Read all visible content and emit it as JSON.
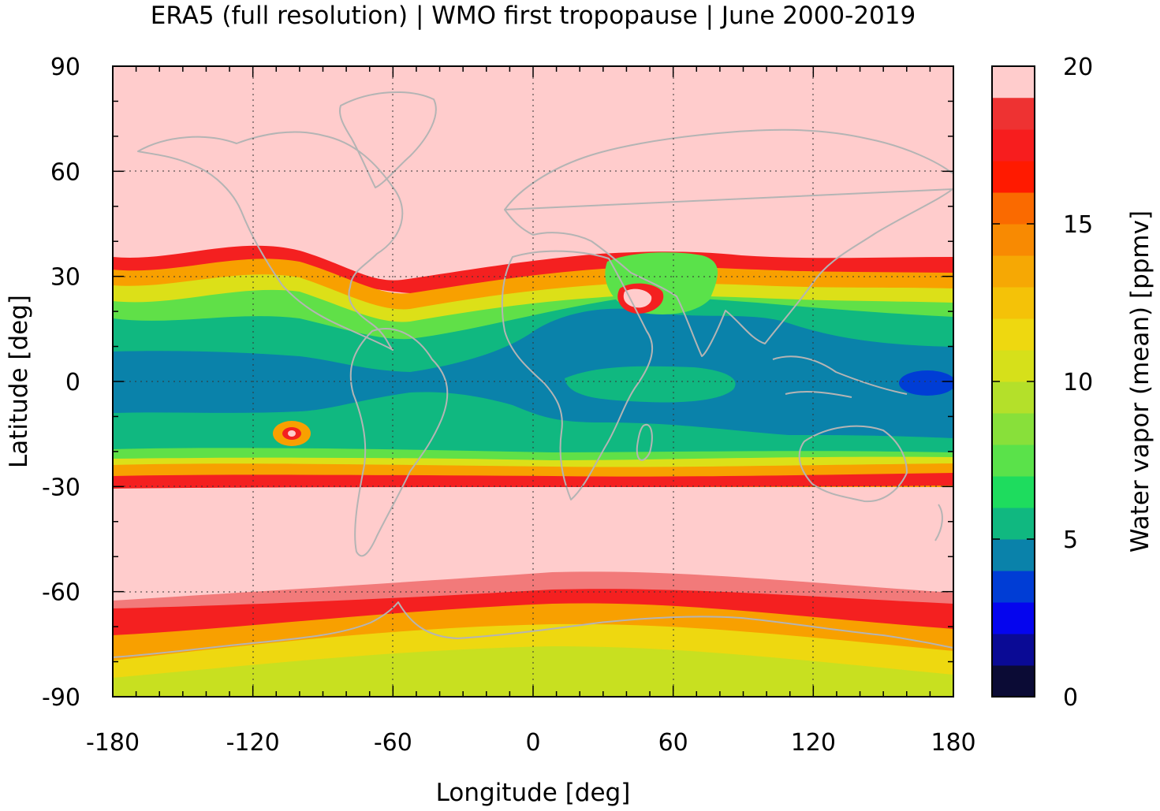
{
  "title": "ERA5 (full resolution) | WMO first tropopause | June 2000-2019",
  "map": {
    "xlabel": "Longitude [deg]",
    "ylabel": "Latitude [deg]",
    "xlim": [
      -180,
      180
    ],
    "ylim": [
      -90,
      90
    ],
    "xticks": [
      "-180",
      "-120",
      "-60",
      "0",
      "60",
      "120",
      "180"
    ],
    "yticks": [
      "90",
      "60",
      "30",
      "0",
      "-30",
      "-60",
      "-90"
    ],
    "grid": "dotted",
    "coastline_color": "#b4b4b4"
  },
  "colorbar": {
    "label": "Water vapor (mean) [ppmv]",
    "ticks": [
      "20",
      "15",
      "10",
      "5",
      "0"
    ],
    "range": [
      0,
      20
    ],
    "step": 1,
    "colors": [
      "#0b0b35",
      "#0a0a95",
      "#0505ee",
      "#003dd5",
      "#0a82aa",
      "#10b880",
      "#1edc5e",
      "#5ae24a",
      "#88e03a",
      "#b4e02a",
      "#d6e01a",
      "#eed810",
      "#f4c208",
      "#f6a804",
      "#f88a02",
      "#fa6a00",
      "#ff1a00",
      "#f71d1e",
      "#ee3232",
      "#f27a7a"
    ],
    "over_color": "#ffcccc"
  },
  "chart_data": {
    "type": "heatmap",
    "title": "ERA5 (full resolution) | WMO first tropopause | June 2000-2019",
    "xlabel": "Longitude [deg]",
    "ylabel": "Latitude [deg]",
    "zlabel": "Water vapor (mean) [ppmv]",
    "xlim": [
      -180,
      180
    ],
    "ylim": [
      -90,
      90
    ],
    "zlim": [
      0,
      20
    ],
    "zonal_profile": [
      {
        "lat": 90,
        "value": 20
      },
      {
        "lat": 45,
        "value": 20
      },
      {
        "lat": 36,
        "value": 18
      },
      {
        "lat": 33,
        "value": 16
      },
      {
        "lat": 30,
        "value": 13
      },
      {
        "lat": 26,
        "value": 10
      },
      {
        "lat": 22,
        "value": 8
      },
      {
        "lat": 17,
        "value": 6
      },
      {
        "lat": 10,
        "value": 5.5
      },
      {
        "lat": 0,
        "value": 4.5
      },
      {
        "lat": -10,
        "value": 5
      },
      {
        "lat": -17,
        "value": 6
      },
      {
        "lat": -22,
        "value": 8
      },
      {
        "lat": -25,
        "value": 10
      },
      {
        "lat": -27,
        "value": 13
      },
      {
        "lat": -29,
        "value": 16
      },
      {
        "lat": -31,
        "value": 20
      },
      {
        "lat": -58,
        "value": 20
      },
      {
        "lat": -63,
        "value": 19
      },
      {
        "lat": -66,
        "value": 17
      },
      {
        "lat": -70,
        "value": 15
      },
      {
        "lat": -75,
        "value": 13
      },
      {
        "lat": -80,
        "value": 11
      },
      {
        "lat": -90,
        "value": 10
      }
    ]
  }
}
